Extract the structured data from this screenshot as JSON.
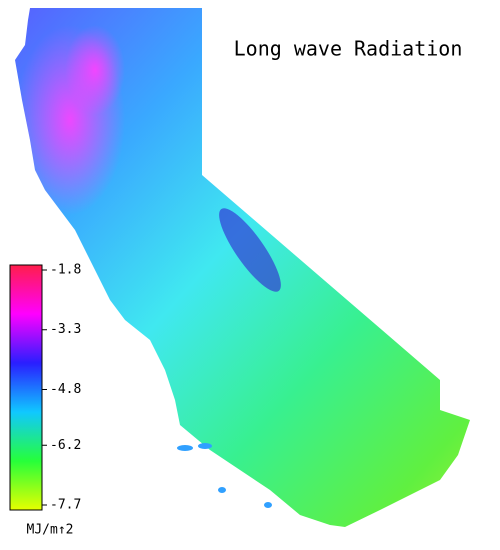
{
  "title": "Long wave Radiation",
  "colorbar": {
    "lim": [
      -1.8,
      -7.7
    ],
    "ticks": [
      -1.8,
      -3.3,
      -4.8,
      -6.2,
      -7.7
    ],
    "colors": [
      "#ff1e4b",
      "#ff00ff",
      "#2a1eff",
      "#10c8ff",
      "#26ff3a",
      "#e6ff00"
    ],
    "unit": "MJ/m↑2"
  }
}
